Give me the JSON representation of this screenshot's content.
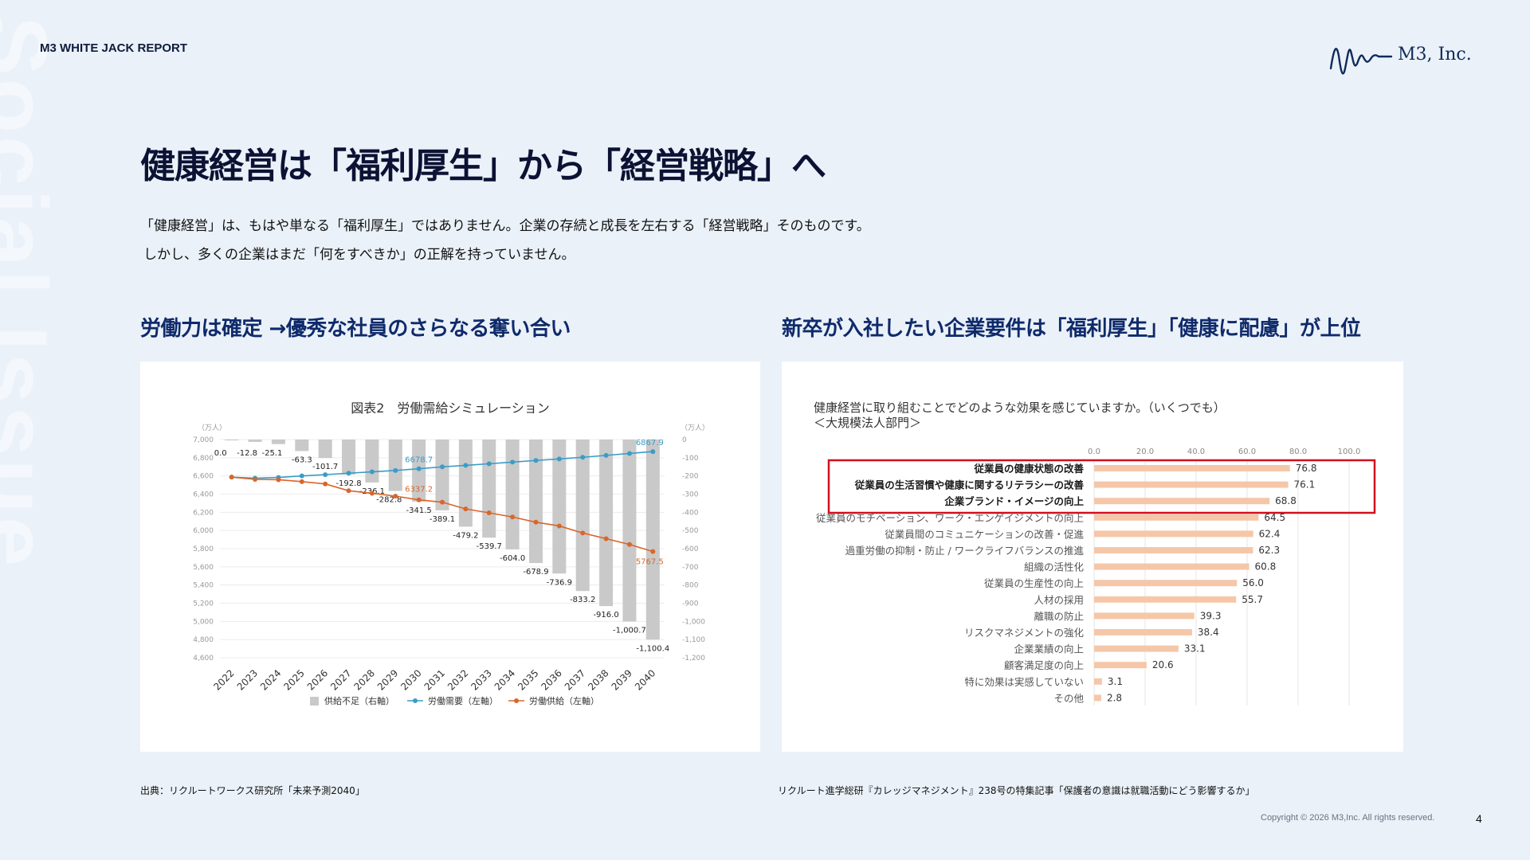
{
  "header": {
    "report_label": "M3 WHITE JACK REPORT",
    "company": "M3, Inc.",
    "watermark": "Social Issue"
  },
  "title": "健康経営は「福利厚生」から「経営戦略」へ",
  "intro": [
    "「健康経営」は、もはや単なる「福利厚生」ではありません。企業の存続と成長を左右する「経営戦略」そのものです。",
    "しかし、多くの企業はまだ「何をすべきか」の正解を持っていません。"
  ],
  "left_section": {
    "heading": "労働力は確定 →優秀な社員のさらなる奪い合い",
    "source": "出典：リクルートワークス研究所「未来予測2040」"
  },
  "right_section": {
    "heading": "新卒が入社したい企業要件は「福利厚生」「健康に配慮」が上位",
    "source": "リクルート進学総研『カレッジマネジメント』238号の特集記事「保護者の意識は就職活動にどう影響するか」"
  },
  "footer": {
    "copyright": "Copyright © 2026  M3,Inc. All rights reserved.",
    "page_number": "4"
  },
  "colors": {
    "navy": "#0f2a6b",
    "bar_gray": "#c9c9c9",
    "demand_blue": "#3a9cc8",
    "supply_orange": "#d9662a",
    "bar_peach": "#f5c7a8",
    "highlight_red": "#d0101f"
  },
  "chart_data": [
    {
      "type": "bar+line",
      "title": "図表2　労働需給シミュレーション",
      "left_unit": "（万人）",
      "right_unit": "（万人）",
      "x": [
        "2022",
        "2023",
        "2024",
        "2025",
        "2026",
        "2027",
        "2028",
        "2029",
        "2030",
        "2031",
        "2032",
        "2033",
        "2034",
        "2035",
        "2036",
        "2037",
        "2038",
        "2039",
        "2040"
      ],
      "left_ylim": [
        4600,
        7000
      ],
      "left_ticks": [
        "7,000",
        "6,800",
        "6,600",
        "6,400",
        "6,200",
        "6,000",
        "5,800",
        "5,600",
        "5,400",
        "5,200",
        "5,000",
        "4,800",
        "4,600"
      ],
      "right_ylim": [
        -1200,
        0
      ],
      "right_ticks": [
        "0",
        "-100",
        "-200",
        "-300",
        "-400",
        "-500",
        "-600",
        "-700",
        "-800",
        "-900",
        "-1,000",
        "-1,100",
        "-1,200"
      ],
      "series": [
        {
          "name": "供給不足（右軸）",
          "kind": "bar",
          "axis": "right",
          "values": [
            0.0,
            -12.8,
            -25.1,
            -63.3,
            -101.7,
            -192.8,
            -236.1,
            -282.8,
            -341.5,
            -389.1,
            -479.2,
            -539.7,
            -604.0,
            -678.9,
            -736.9,
            -833.2,
            -916.0,
            -1000.7,
            -1100.4
          ],
          "labels": [
            "0.0",
            "-12.8",
            "-25.1",
            "-63.3",
            "-101.7",
            "-192.8",
            "-236.1",
            "-282.8",
            "-341.5",
            "-389.1",
            "-479.2",
            "-539.7",
            "-604.0",
            "-678.9",
            "-736.9",
            "-833.2",
            "-916.0",
            "-1,000.7",
            "-1,100.4"
          ]
        },
        {
          "name": "労働需要（左軸）",
          "kind": "line",
          "axis": "left",
          "values": [
            6587,
            6575,
            6583,
            6600,
            6614,
            6630,
            6645,
            6660,
            6679,
            6700,
            6716,
            6734,
            6752,
            6770,
            6787,
            6805,
            6826,
            6847,
            6868
          ],
          "labels": {
            "8": "6678.7",
            "18": "6867.9"
          }
        },
        {
          "name": "労働供給（左軸）",
          "kind": "line",
          "axis": "left",
          "values": [
            6587,
            6562,
            6558,
            6537,
            6512,
            6437,
            6409,
            6377,
            6337,
            6311,
            6237,
            6194,
            6148,
            6091,
            6050,
            5972,
            5910,
            5846,
            5768
          ],
          "labels": {
            "8": "6337.2",
            "18": "5767.5"
          }
        }
      ]
    },
    {
      "type": "bar",
      "orientation": "horizontal",
      "title": "健康経営に取り組むことでどのような効果を感じていますか。（いくつでも）",
      "subtitle": "＜大規模法人部門＞",
      "xlim": [
        0,
        100
      ],
      "ticks": [
        "0.0",
        "20.0",
        "40.0",
        "60.0",
        "80.0",
        "100.0"
      ],
      "categories": [
        "従業員の健康状態の改善",
        "従業員の生活習慣や健康に関するリテラシーの改善",
        "企業ブランド・イメージの向上",
        "従業員のモチベーション、ワーク・エンゲイジメントの向上",
        "従業員間のコミュニケーションの改善・促進",
        "過重労働の抑制・防止 / ワークライフバランスの推進",
        "組織の活性化",
        "従業員の生産性の向上",
        "人材の採用",
        "離職の防止",
        "リスクマネジメントの強化",
        "企業業績の向上",
        "顧客満足度の向上",
        "特に効果は実感していない",
        "その他"
      ],
      "values": [
        76.8,
        76.1,
        68.8,
        64.5,
        62.4,
        62.3,
        60.8,
        56.0,
        55.7,
        39.3,
        38.4,
        33.1,
        20.6,
        3.1,
        2.8
      ],
      "labels": [
        "76.8",
        "76.1",
        "68.8",
        "64.5",
        "62.4",
        "62.3",
        "60.8",
        "56.0",
        "55.7",
        "39.3",
        "38.4",
        "33.1",
        "20.6",
        "3.1",
        "2.8"
      ],
      "highlighted": [
        0,
        1,
        2
      ]
    }
  ]
}
